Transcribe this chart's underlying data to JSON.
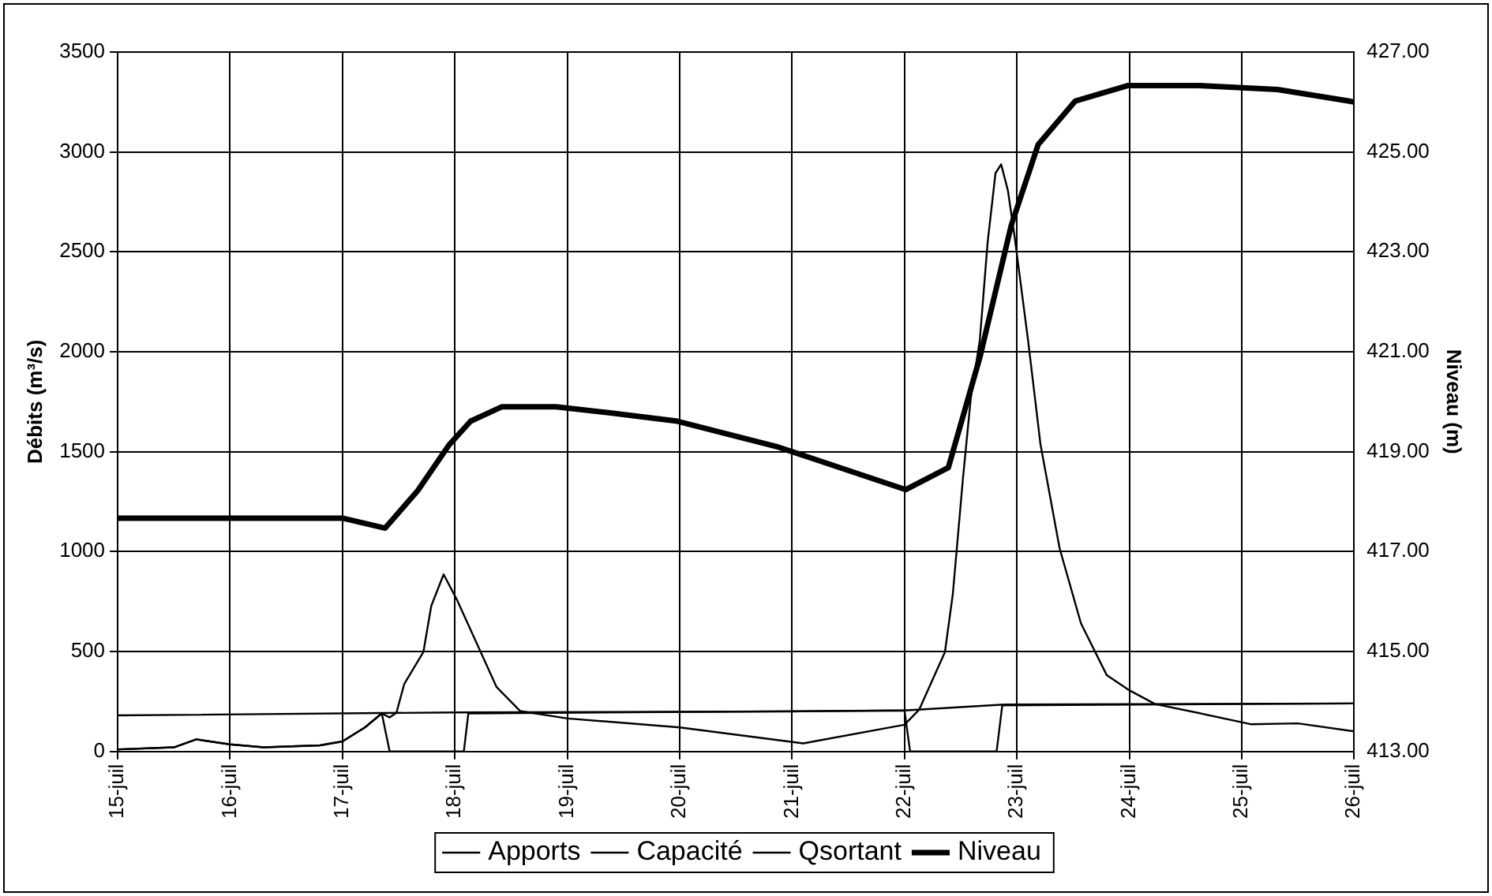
{
  "chart_data": {
    "type": "line",
    "xlabel": null,
    "ylabel": "Débits (m³/s)",
    "y2label": "Niveau (m)",
    "xlim": [
      15,
      26
    ],
    "xticks": [
      {
        "value": 15,
        "label": "15-juil"
      },
      {
        "value": 16,
        "label": "16-juil"
      },
      {
        "value": 17,
        "label": "17-juil"
      },
      {
        "value": 18,
        "label": "18-juil"
      },
      {
        "value": 19,
        "label": "19-juil"
      },
      {
        "value": 20,
        "label": "20-juil"
      },
      {
        "value": 21,
        "label": "21-juil"
      },
      {
        "value": 22,
        "label": "22-juil"
      },
      {
        "value": 23,
        "label": "23-juil"
      },
      {
        "value": 24,
        "label": "24-juil"
      },
      {
        "value": 25,
        "label": "25-juil"
      },
      {
        "value": 26,
        "label": "26-juil"
      }
    ],
    "ylim": [
      0,
      3500
    ],
    "yticks": [
      0,
      500,
      1000,
      1500,
      2000,
      2500,
      3000,
      3500
    ],
    "y2lim": [
      413,
      427
    ],
    "y2ticks": [
      {
        "value": 413,
        "label": "413.00"
      },
      {
        "value": 415,
        "label": "415.00"
      },
      {
        "value": 417,
        "label": "417.00"
      },
      {
        "value": 419,
        "label": "419.00"
      },
      {
        "value": 421,
        "label": "421.00"
      },
      {
        "value": 423,
        "label": "423.00"
      },
      {
        "value": 425,
        "label": "425.00"
      },
      {
        "value": 427,
        "label": "427.00"
      }
    ],
    "grid": true,
    "legend": "bottom",
    "marker": "none",
    "line_style": "solid",
    "series": [
      {
        "name": "Apports",
        "color": "#000000",
        "x": [
          15,
          15.5,
          15.7,
          16,
          16.3,
          16.8,
          17,
          17.2,
          17.35,
          17.42,
          17.48,
          17.55,
          17.72,
          17.79,
          17.9,
          18.02,
          18.23,
          18.37,
          18.58,
          19,
          20,
          21.1,
          22,
          22.13,
          22.36,
          22.43,
          22.52,
          22.59,
          22.67,
          22.74,
          22.81,
          22.86,
          22.92,
          22.98,
          23.1,
          23.21,
          23.38,
          23.57,
          23.8,
          23.99,
          24.23,
          24.61,
          25.08,
          25.5,
          26
        ],
        "values": [
          10,
          20,
          60,
          35,
          20,
          30,
          50,
          120,
          190,
          170,
          193,
          338,
          497,
          728,
          886,
          757,
          497,
          323,
          202,
          165,
          120,
          40,
          133,
          208,
          497,
          786,
          1364,
          1768,
          2056,
          2548,
          2894,
          2938,
          2808,
          2576,
          2056,
          1537,
          1017,
          641,
          381,
          309,
          237,
          193,
          136,
          140,
          100
        ]
      },
      {
        "name": "Capacité",
        "color": "#000000",
        "x": [
          15,
          18,
          21,
          22,
          22.9,
          26
        ],
        "values": [
          180,
          195,
          200,
          205,
          235,
          240
        ]
      },
      {
        "name": "Qsortant",
        "color": "#000000",
        "x": [
          15,
          15.5,
          15.7,
          16,
          16.3,
          16.8,
          17,
          17.2,
          17.35,
          17.42,
          18.08,
          18.12,
          22,
          22.05,
          22.82,
          22.87,
          26
        ],
        "values": [
          10,
          20,
          60,
          35,
          20,
          30,
          50,
          120,
          190,
          0,
          0,
          190,
          205,
          0,
          0,
          230,
          240
        ]
      },
      {
        "name": "Niveau",
        "color": "#000000",
        "axis": "y2",
        "x": [
          15,
          16,
          17,
          17.38,
          17.67,
          17.95,
          18.14,
          18.42,
          18.9,
          19.37,
          19.98,
          20.88,
          22.01,
          22.39,
          22.67,
          22.95,
          23.19,
          23.52,
          23.99,
          24.61,
          25.32,
          25.95,
          26
        ],
        "values": [
          417.67,
          417.67,
          417.67,
          417.47,
          418.22,
          419.14,
          419.61,
          419.9,
          419.9,
          419.78,
          419.61,
          419.09,
          418.24,
          418.68,
          420.88,
          423.53,
          425.15,
          426.02,
          426.33,
          426.33,
          426.25,
          426.02,
          426
        ]
      }
    ]
  }
}
